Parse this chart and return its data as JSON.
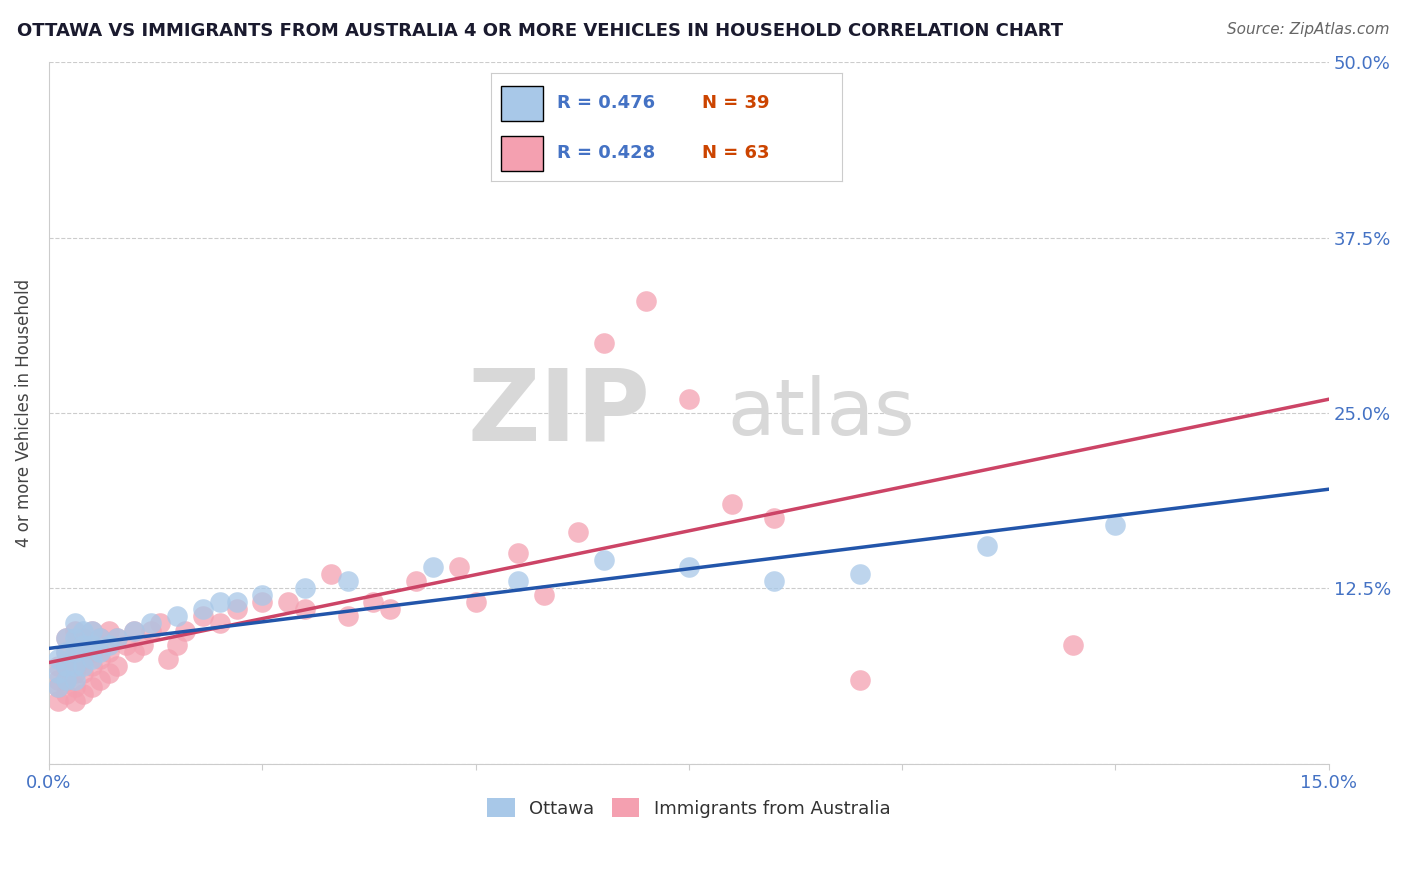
{
  "title": "OTTAWA VS IMMIGRANTS FROM AUSTRALIA 4 OR MORE VEHICLES IN HOUSEHOLD CORRELATION CHART",
  "source": "Source: ZipAtlas.com",
  "ylabel": "4 or more Vehicles in Household",
  "xlim": [
    0.0,
    0.15
  ],
  "ylim": [
    0.0,
    0.5
  ],
  "grid_color": "#cccccc",
  "background_color": "#ffffff",
  "ottawa_color": "#a8c8e8",
  "australia_color": "#f4a0b0",
  "ottawa_line_color": "#2255aa",
  "australia_line_color": "#cc4466",
  "ottawa_R": 0.476,
  "ottawa_N": 39,
  "australia_R": 0.428,
  "australia_N": 63,
  "legend_label_1": "Ottawa",
  "legend_label_2": "Immigrants from Australia",
  "watermark_zip": "ZIP",
  "watermark_atlas": "atlas",
  "tick_color": "#4472c4",
  "ottawa_x": [
    0.001,
    0.001,
    0.001,
    0.002,
    0.002,
    0.002,
    0.002,
    0.003,
    0.003,
    0.003,
    0.003,
    0.003,
    0.004,
    0.004,
    0.004,
    0.005,
    0.005,
    0.005,
    0.006,
    0.006,
    0.007,
    0.008,
    0.01,
    0.012,
    0.015,
    0.018,
    0.02,
    0.022,
    0.025,
    0.03,
    0.035,
    0.045,
    0.055,
    0.065,
    0.075,
    0.085,
    0.095,
    0.11,
    0.125
  ],
  "ottawa_y": [
    0.055,
    0.065,
    0.075,
    0.06,
    0.07,
    0.08,
    0.09,
    0.06,
    0.07,
    0.08,
    0.09,
    0.1,
    0.07,
    0.085,
    0.095,
    0.075,
    0.085,
    0.095,
    0.08,
    0.09,
    0.085,
    0.09,
    0.095,
    0.1,
    0.105,
    0.11,
    0.115,
    0.115,
    0.12,
    0.125,
    0.13,
    0.14,
    0.13,
    0.145,
    0.14,
    0.13,
    0.135,
    0.155,
    0.17
  ],
  "australia_x": [
    0.001,
    0.001,
    0.001,
    0.001,
    0.002,
    0.002,
    0.002,
    0.002,
    0.002,
    0.003,
    0.003,
    0.003,
    0.003,
    0.003,
    0.003,
    0.004,
    0.004,
    0.004,
    0.004,
    0.005,
    0.005,
    0.005,
    0.005,
    0.006,
    0.006,
    0.006,
    0.007,
    0.007,
    0.007,
    0.008,
    0.008,
    0.009,
    0.01,
    0.01,
    0.011,
    0.012,
    0.013,
    0.014,
    0.015,
    0.016,
    0.018,
    0.02,
    0.022,
    0.025,
    0.028,
    0.03,
    0.033,
    0.035,
    0.038,
    0.04,
    0.043,
    0.048,
    0.05,
    0.055,
    0.058,
    0.062,
    0.065,
    0.07,
    0.075,
    0.08,
    0.085,
    0.095,
    0.12
  ],
  "australia_y": [
    0.045,
    0.055,
    0.06,
    0.07,
    0.05,
    0.06,
    0.07,
    0.08,
    0.09,
    0.045,
    0.055,
    0.065,
    0.075,
    0.085,
    0.095,
    0.05,
    0.065,
    0.075,
    0.09,
    0.055,
    0.07,
    0.08,
    0.095,
    0.06,
    0.075,
    0.09,
    0.065,
    0.08,
    0.095,
    0.07,
    0.09,
    0.085,
    0.08,
    0.095,
    0.085,
    0.095,
    0.1,
    0.075,
    0.085,
    0.095,
    0.105,
    0.1,
    0.11,
    0.115,
    0.115,
    0.11,
    0.135,
    0.105,
    0.115,
    0.11,
    0.13,
    0.14,
    0.115,
    0.15,
    0.12,
    0.165,
    0.3,
    0.33,
    0.26,
    0.185,
    0.175,
    0.06,
    0.085
  ]
}
